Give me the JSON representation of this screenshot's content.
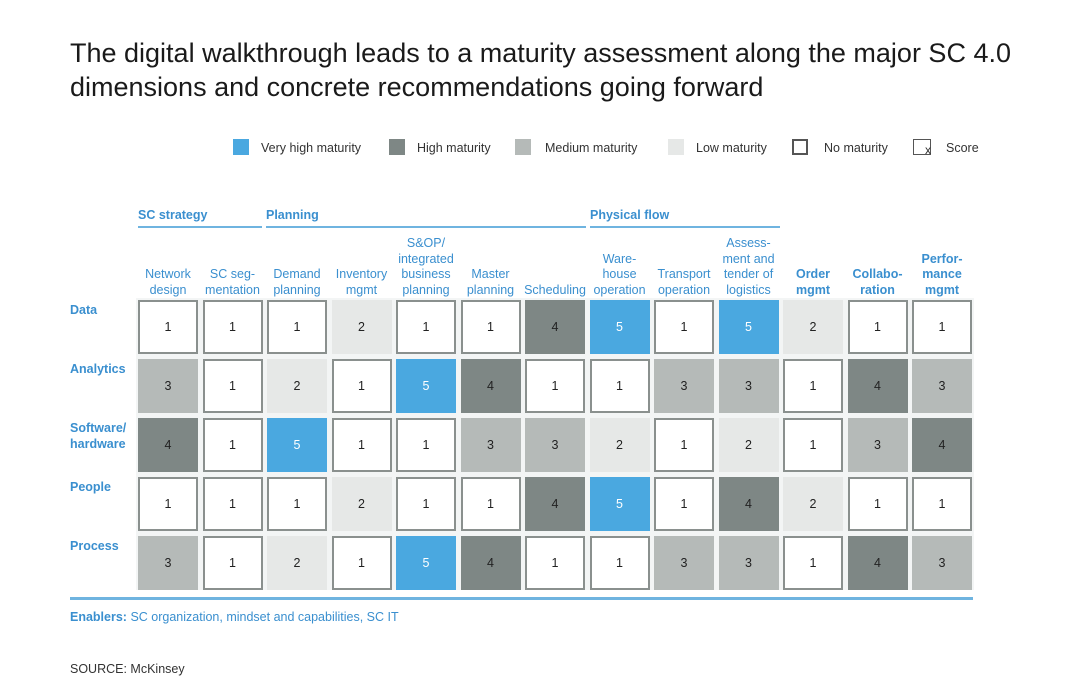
{
  "title": "The digital walkthrough leads to a maturity assessment along the major SC 4.0 dimensions and concrete recommendations going forward",
  "legend": [
    {
      "label": "Very high maturity",
      "level": "very-high",
      "color": "#4aa8e0"
    },
    {
      "label": "High maturity",
      "level": "high",
      "color": "#7e8785"
    },
    {
      "label": "Medium maturity",
      "level": "medium",
      "color": "#b5bab8"
    },
    {
      "label": "Low maturity",
      "level": "low",
      "color": "#e6e8e7"
    },
    {
      "label": "No maturity",
      "level": "none",
      "color": "#ffffff"
    },
    {
      "label": "Score",
      "level": "score",
      "symbol": "x"
    }
  ],
  "groups": [
    {
      "label": "SC strategy"
    },
    {
      "label": "Planning"
    },
    {
      "label": "Physical flow"
    }
  ],
  "columns": [
    {
      "lines": [
        "Network",
        "design"
      ],
      "bold": false
    },
    {
      "lines": [
        "SC seg-",
        "mentation"
      ],
      "bold": false
    },
    {
      "lines": [
        "Demand",
        "planning"
      ],
      "bold": false
    },
    {
      "lines": [
        "Inventory",
        "mgmt"
      ],
      "bold": false
    },
    {
      "lines": [
        "S&OP/",
        "integrated",
        "business",
        "planning"
      ],
      "bold": false
    },
    {
      "lines": [
        "Master",
        "planning"
      ],
      "bold": false
    },
    {
      "lines": [
        "Scheduling"
      ],
      "bold": false
    },
    {
      "lines": [
        "Ware-",
        "house",
        "operation"
      ],
      "bold": false
    },
    {
      "lines": [
        "Transport",
        "operation"
      ],
      "bold": false
    },
    {
      "lines": [
        "Assess-",
        "ment and",
        "tender of",
        "logistics"
      ],
      "bold": false
    },
    {
      "lines": [
        "Order",
        "mgmt"
      ],
      "bold": true
    },
    {
      "lines": [
        "Collabo-",
        "ration"
      ],
      "bold": true
    },
    {
      "lines": [
        "Perfor-",
        "mance",
        "mgmt"
      ],
      "bold": true
    }
  ],
  "rows": [
    {
      "label": "Data",
      "scores": [
        1,
        1,
        1,
        2,
        1,
        1,
        4,
        5,
        1,
        5,
        2,
        1,
        1
      ]
    },
    {
      "label": "Analytics",
      "scores": [
        3,
        1,
        2,
        1,
        5,
        4,
        1,
        1,
        3,
        3,
        1,
        4,
        3
      ]
    },
    {
      "label": "Software/ hardware",
      "scores": [
        4,
        1,
        5,
        1,
        1,
        3,
        3,
        2,
        1,
        2,
        1,
        3,
        4
      ]
    },
    {
      "label": "People",
      "scores": [
        1,
        1,
        1,
        2,
        1,
        1,
        4,
        5,
        1,
        4,
        2,
        1,
        1
      ]
    },
    {
      "label": "Process",
      "scores": [
        3,
        1,
        2,
        1,
        5,
        4,
        1,
        1,
        3,
        3,
        1,
        4,
        3
      ]
    }
  ],
  "score_colors": {
    "1": "#ffffff",
    "2": "#e6e8e7",
    "3": "#b5bab8",
    "4": "#7e8785",
    "5": "#4aa8e0"
  },
  "enablers": {
    "label": "Enablers:",
    "text": " SC organization, mindset and capabilities, SC IT"
  },
  "source": "SOURCE: McKinsey"
}
